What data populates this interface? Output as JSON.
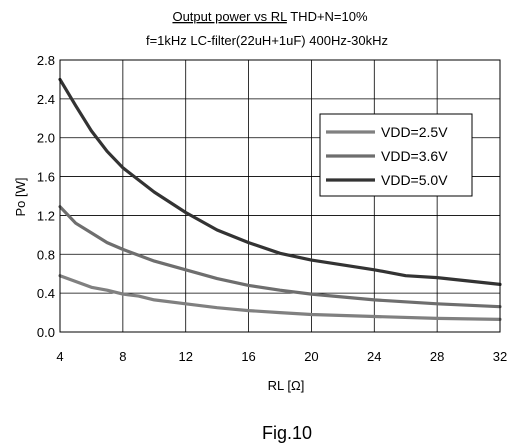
{
  "chart_data": {
    "type": "line",
    "title_underlined": "Output power vs RL",
    "title_rest": " THD+N=10%",
    "subtitle": "f=1kHz LC-filter(22uH+1uF) 400Hz-30kHz",
    "xlabel": "RL [Ω]",
    "ylabel": "Po [W]",
    "xlim": [
      4,
      32
    ],
    "ylim": [
      0,
      2.8
    ],
    "xticks": [
      "4",
      "8",
      "12",
      "16",
      "20",
      "24",
      "28",
      "32"
    ],
    "yticks": [
      "0.0",
      "0.4",
      "0.8",
      "1.2",
      "1.6",
      "2.0",
      "2.4",
      "2.8"
    ],
    "xtick_values": [
      4,
      8,
      12,
      16,
      20,
      24,
      28,
      32
    ],
    "ytick_values": [
      0,
      0.4,
      0.8,
      1.2,
      1.6,
      2.0,
      2.4,
      2.8
    ],
    "grid": true,
    "legend_position": "upper-right",
    "series": [
      {
        "name": "VDD=2.5V",
        "color": "#808080",
        "x": [
          4,
          5,
          6,
          7,
          8,
          9,
          10,
          12,
          14,
          16,
          18,
          20,
          24,
          28,
          32
        ],
        "y": [
          0.58,
          0.52,
          0.46,
          0.43,
          0.39,
          0.37,
          0.33,
          0.29,
          0.25,
          0.22,
          0.2,
          0.18,
          0.16,
          0.14,
          0.13
        ]
      },
      {
        "name": "VDD=3.6V",
        "color": "#6e6e6e",
        "x": [
          4,
          5,
          6,
          7,
          8,
          9,
          10,
          12,
          14,
          16,
          18,
          20,
          24,
          28,
          32
        ],
        "y": [
          1.29,
          1.12,
          1.02,
          0.92,
          0.85,
          0.79,
          0.73,
          0.64,
          0.55,
          0.48,
          0.43,
          0.39,
          0.33,
          0.29,
          0.26
        ]
      },
      {
        "name": "VDD=5.0V",
        "color": "#333333",
        "x": [
          4,
          5,
          6,
          7,
          8,
          10,
          12,
          14,
          16,
          18,
          20,
          24,
          26,
          28,
          32
        ],
        "y": [
          2.6,
          2.33,
          2.07,
          1.86,
          1.69,
          1.44,
          1.23,
          1.05,
          0.92,
          0.81,
          0.74,
          0.64,
          0.58,
          0.56,
          0.49
        ]
      }
    ]
  },
  "caption": "Fig.10"
}
